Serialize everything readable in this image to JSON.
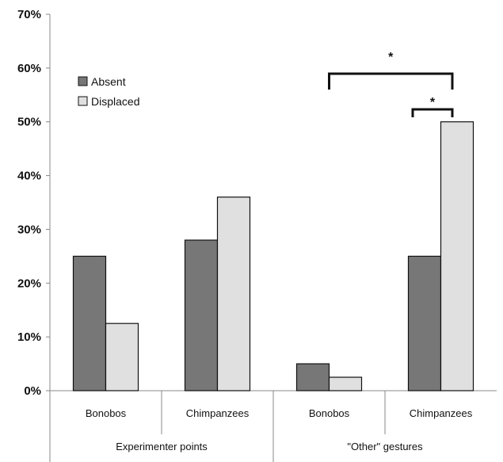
{
  "chart_data": {
    "type": "bar",
    "groups": [
      {
        "label": "Experimenter points",
        "categories": [
          "Bonobos",
          "Chimpanzees"
        ]
      },
      {
        "label": "\"Other\" gestures",
        "categories": [
          "Bonobos",
          "Chimpanzees"
        ]
      }
    ],
    "categories": [
      "Bonobos",
      "Chimpanzees",
      "Bonobos",
      "Chimpanzees"
    ],
    "series": [
      {
        "name": "Absent",
        "color": "#777777",
        "values": [
          25,
          28,
          5,
          25
        ]
      },
      {
        "name": "Displaced",
        "color": "#e0e0e0",
        "values": [
          12.5,
          36,
          2.5,
          50
        ]
      }
    ],
    "ylim": [
      0,
      70
    ],
    "yticks": [
      "0%",
      "10%",
      "20%",
      "30%",
      "40%",
      "50%",
      "60%",
      "70%"
    ],
    "legend_position": "top-left",
    "grid": false,
    "annotations": [
      {
        "text": "*",
        "from": "\"Other\" gestures Bonobos",
        "to": "\"Other\" gestures Chimpanzees Displaced"
      },
      {
        "text": "*",
        "from": "\"Other\" gestures Chimpanzees Absent",
        "to": "\"Other\" gestures Chimpanzees Displaced"
      }
    ]
  }
}
